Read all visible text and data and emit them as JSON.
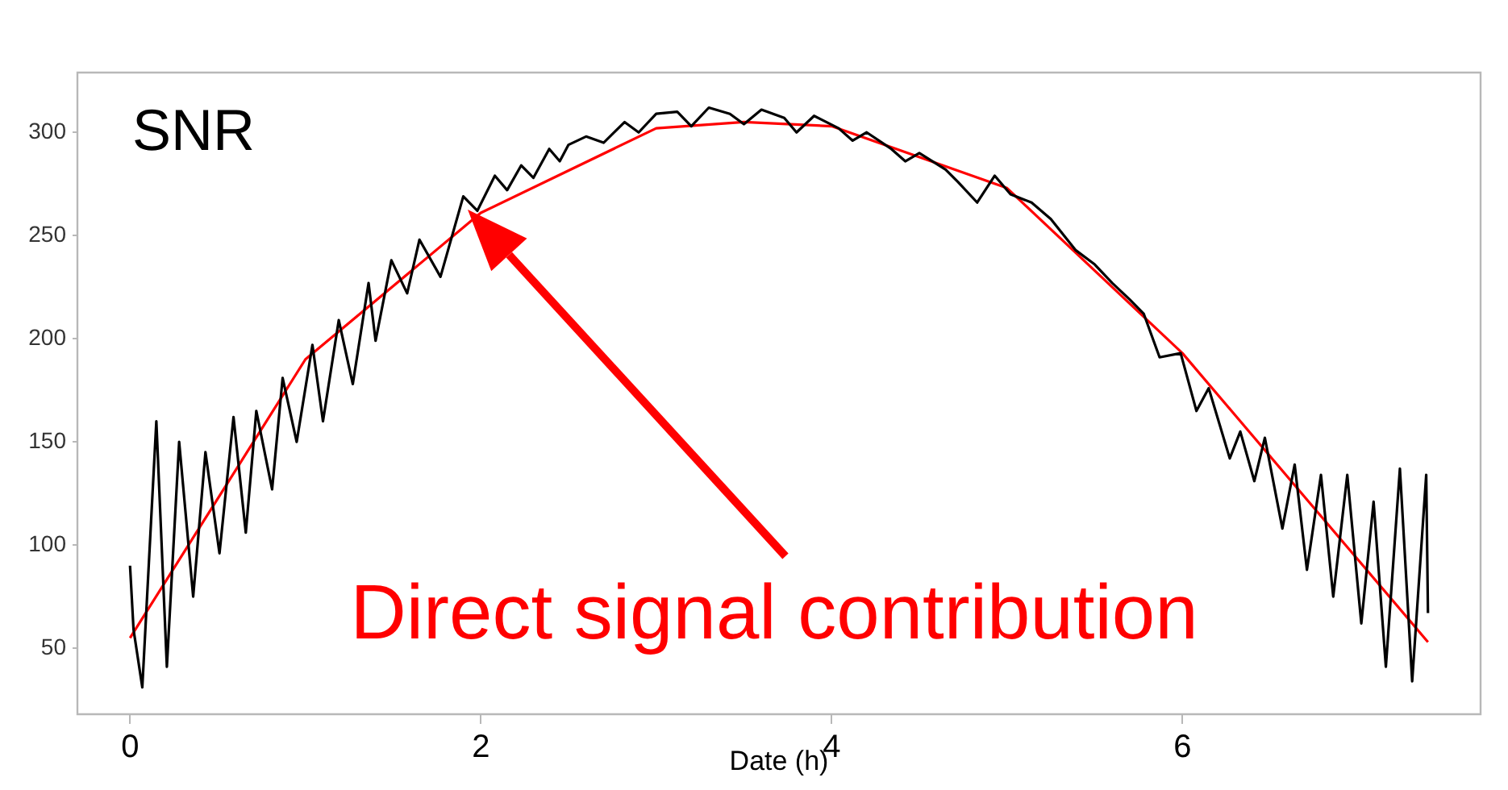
{
  "chart_data": {
    "type": "line",
    "title": "SNR",
    "xlabel": "Date (h)",
    "xlim": [
      -0.3,
      7.7
    ],
    "ylim": [
      18,
      329
    ],
    "xticks": [
      0,
      2,
      4,
      6
    ],
    "yticks": [
      50,
      100,
      150,
      200,
      250,
      300
    ],
    "grid": false,
    "legend": false,
    "marker": "none",
    "annotations": [
      "Direct signal contribution"
    ],
    "series": [
      {
        "color": "#000000",
        "x": [
          0,
          0.02,
          0.07,
          0.15,
          0.21,
          0.28,
          0.36,
          0.43,
          0.51,
          0.59,
          0.66,
          0.72,
          0.81,
          0.87,
          0.95,
          1.04,
          1.1,
          1.19,
          1.27,
          1.36,
          1.4,
          1.49,
          1.58,
          1.65,
          1.77,
          1.9,
          1.98,
          2.08,
          2.15,
          2.23,
          2.3,
          2.39,
          2.45,
          2.5,
          2.6,
          2.7,
          2.82,
          2.9,
          3.0,
          3.12,
          3.2,
          3.3,
          3.42,
          3.5,
          3.6,
          3.73,
          3.8,
          3.9,
          4.04,
          4.12,
          4.2,
          4.34,
          4.42,
          4.5,
          4.65,
          4.72,
          4.83,
          4.93,
          5.02,
          5.14,
          5.25,
          5.39,
          5.5,
          5.6,
          5.7,
          5.78,
          5.87,
          5.99,
          6.08,
          6.15,
          6.27,
          6.33,
          6.41,
          6.47,
          6.57,
          6.64,
          6.71,
          6.79,
          6.86,
          6.94,
          7.02,
          7.09,
          7.16,
          7.24,
          7.31,
          7.39,
          7.4
        ],
        "values": [
          90,
          59,
          31,
          160,
          41,
          150,
          75,
          145,
          96,
          162,
          106,
          165,
          127,
          181,
          150,
          197,
          160,
          209,
          178,
          227,
          199,
          238,
          222,
          248,
          230,
          269,
          262,
          279,
          272,
          284,
          278,
          292,
          286,
          294,
          298,
          295,
          305,
          300,
          309,
          310,
          303,
          312,
          309,
          304,
          311,
          307,
          300,
          308,
          302,
          296,
          300,
          292,
          286,
          290,
          282,
          276,
          266,
          279,
          270,
          266,
          258,
          243,
          236,
          227,
          219,
          212,
          191,
          193,
          165,
          176,
          142,
          155,
          131,
          152,
          108,
          139,
          88,
          134,
          75,
          134,
          62,
          121,
          41,
          137,
          34,
          134,
          67
        ]
      },
      {
        "color": "#ff0000",
        "x": [
          0,
          1,
          2,
          3,
          3.5,
          4,
          5,
          6,
          7,
          7.4
        ],
        "values": [
          55,
          190,
          261,
          302,
          305,
          303,
          273,
          193,
          93,
          53
        ]
      }
    ]
  }
}
